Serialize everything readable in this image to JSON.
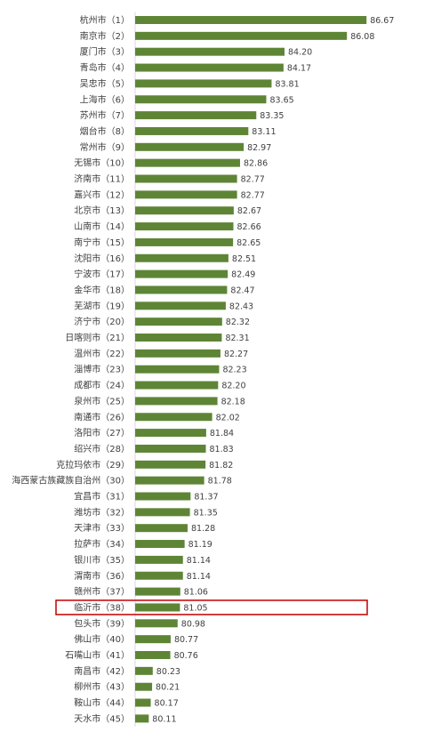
{
  "chart_data": {
    "type": "bar",
    "orientation": "horizontal",
    "title": "",
    "xlabel": "",
    "ylabel": "",
    "xlim": [
      79.7,
      87.2
    ],
    "grid": false,
    "legend": "none",
    "bar_color": "#5e8535",
    "highlight_color": "#c00000",
    "highlight_index": 37,
    "categories": [
      "杭州市（1）",
      "南京市（2）",
      "厦门市（3）",
      "青岛市（4）",
      "吴忠市（5）",
      "上海市（6）",
      "苏州市（7）",
      "烟台市（8）",
      "常州市（9）",
      "无锡市（10）",
      "济南市（11）",
      "嘉兴市（12）",
      "北京市（13）",
      "山南市（14）",
      "南宁市（15）",
      "沈阳市（16）",
      "宁波市（17）",
      "金华市（18）",
      "芜湖市（19）",
      "济宁市（20）",
      "日喀则市（21）",
      "温州市（22）",
      "淄博市（23）",
      "成都市（24）",
      "泉州市（25）",
      "南通市（26）",
      "洛阳市（27）",
      "绍兴市（28）",
      "克拉玛依市（29）",
      "海西蒙古族藏族自治州（30）",
      "宜昌市（31）",
      "潍坊市（32）",
      "天津市（33）",
      "拉萨市（34）",
      "银川市（35）",
      "渭南市（36）",
      "赣州市（37）",
      "临沂市（38）",
      "包头市（39）",
      "佛山市（40）",
      "石嘴山市（41）",
      "南昌市（42）",
      "柳州市（43）",
      "鞍山市（44）",
      "天水市（45）"
    ],
    "values": [
      86.67,
      86.08,
      84.2,
      84.17,
      83.81,
      83.65,
      83.35,
      83.11,
      82.97,
      82.86,
      82.77,
      82.77,
      82.67,
      82.66,
      82.65,
      82.51,
      82.49,
      82.47,
      82.43,
      82.32,
      82.31,
      82.27,
      82.23,
      82.2,
      82.18,
      82.02,
      81.84,
      81.83,
      81.82,
      81.78,
      81.37,
      81.35,
      81.28,
      81.19,
      81.14,
      81.14,
      81.06,
      81.05,
      80.98,
      80.77,
      80.76,
      80.23,
      80.21,
      80.17,
      80.11
    ],
    "value_labels": [
      "86.67",
      "86.08",
      "84.20",
      "84.17",
      "83.81",
      "83.65",
      "83.35",
      "83.11",
      "82.97",
      "82.86",
      "82.77",
      "82.77",
      "82.67",
      "82.66",
      "82.65",
      "82.51",
      "82.49",
      "82.47",
      "82.43",
      "82.32",
      "82.31",
      "82.27",
      "82.23",
      "82.20",
      "82.18",
      "82.02",
      "81.84",
      "81.83",
      "81.82",
      "81.78",
      "81.37",
      "81.35",
      "81.28",
      "81.19",
      "81.14",
      "81.14",
      "81.06",
      "81.05",
      "80.98",
      "80.77",
      "80.76",
      "80.23",
      "80.21",
      "80.17",
      "80.11"
    ]
  }
}
